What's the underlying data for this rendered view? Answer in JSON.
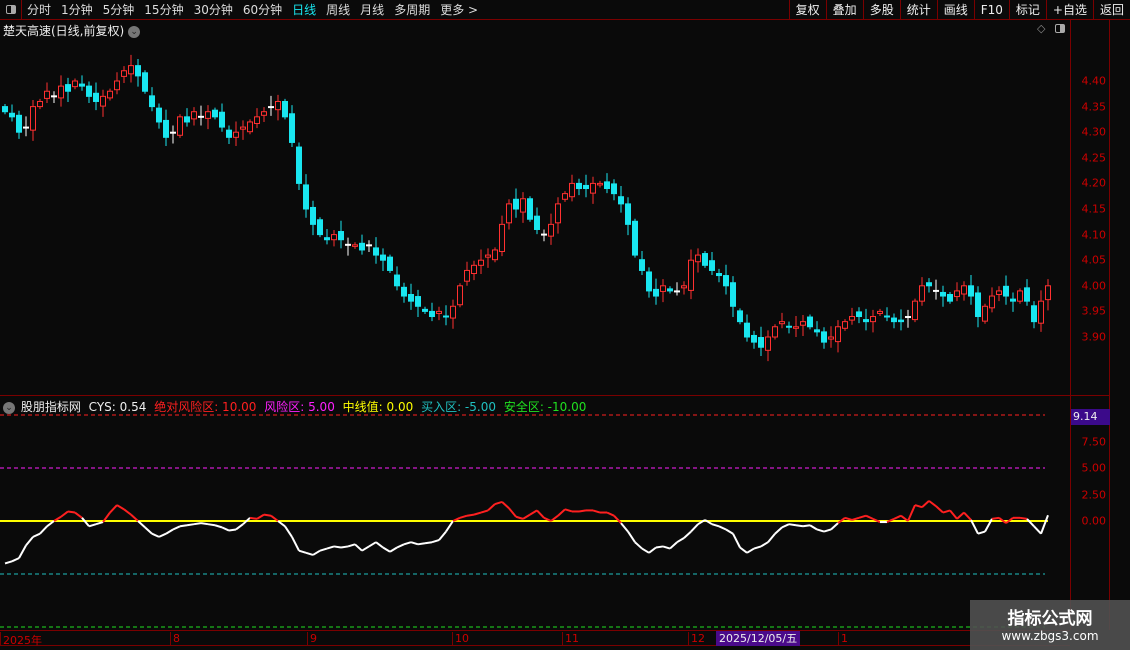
{
  "toolbar": {
    "tabs": [
      "分时",
      "1分钟",
      "5分钟",
      "15分钟",
      "30分钟",
      "60分钟",
      "日线",
      "周线",
      "月线",
      "多周期",
      "更多 >"
    ],
    "active": "日线",
    "right_buttons": [
      "复权",
      "叠加",
      "多股",
      "统计",
      "画线",
      "F10",
      "标记",
      "+自选",
      "返回"
    ]
  },
  "chart": {
    "title": "楚天高速(日线,前复权)",
    "price_ticks": [
      "4.40",
      "4.35",
      "4.30",
      "4.25",
      "4.20",
      "4.15",
      "4.10",
      "4.05",
      "4.00",
      "3.95",
      "3.90"
    ],
    "up_color": "#ff3030",
    "down_color": "#19e6f0",
    "closes": [
      4.34,
      4.33,
      4.3,
      4.31,
      4.35,
      4.36,
      4.38,
      4.37,
      4.39,
      4.38,
      4.4,
      4.39,
      4.37,
      4.36,
      4.37,
      4.38,
      4.4,
      4.42,
      4.43,
      4.41,
      4.38,
      4.35,
      4.32,
      4.29,
      4.3,
      4.33,
      4.32,
      4.34,
      4.33,
      4.34,
      4.33,
      4.31,
      4.29,
      4.3,
      4.31,
      4.32,
      4.33,
      4.34,
      4.35,
      4.36,
      4.33,
      4.28,
      4.2,
      4.15,
      4.12,
      4.1,
      4.09,
      4.1,
      4.09,
      4.08,
      4.08,
      4.07,
      4.08,
      4.06,
      4.05,
      4.03,
      4.0,
      3.98,
      3.97,
      3.96,
      3.95,
      3.94,
      3.95,
      3.94,
      3.96,
      4.0,
      4.03,
      4.04,
      4.05,
      4.06,
      4.07,
      4.12,
      4.16,
      4.15,
      4.17,
      4.13,
      4.11,
      4.1,
      4.12,
      4.16,
      4.18,
      4.2,
      4.19,
      4.19,
      4.2,
      4.2,
      4.19,
      4.18,
      4.16,
      4.12,
      4.06,
      4.03,
      3.99,
      3.98,
      4.0,
      3.99,
      3.99,
      4.0,
      4.05,
      4.06,
      4.04,
      4.03,
      4.02,
      4.0,
      3.96,
      3.93,
      3.9,
      3.89,
      3.88,
      3.9,
      3.92,
      3.93,
      3.92,
      3.92,
      3.93,
      3.92,
      3.91,
      3.89,
      3.9,
      3.92,
      3.93,
      3.94,
      3.94,
      3.93,
      3.94,
      3.95,
      3.94,
      3.93,
      3.93,
      3.94,
      3.97,
      4.0,
      4.0,
      3.99,
      3.98,
      3.97,
      3.99,
      4.0,
      3.98,
      3.94,
      3.96,
      3.98,
      3.99,
      3.98,
      3.97,
      3.99,
      3.97,
      3.93,
      3.97,
      4.0
    ]
  },
  "indicator": {
    "name": "股朋指标网",
    "cys_label": "CYS: 0.54",
    "abs_risk": "绝对风险区: 10.00",
    "risk": "风险区: 5.00",
    "mid": "中线值: 0.00",
    "buy": "买入区: -5.00",
    "safe": "安全区: -10.00",
    "colors": {
      "abs_risk": "#ff2020",
      "risk": "#ff20ff",
      "mid": "#ffff00",
      "buy": "#20c0c0",
      "safe": "#20e020"
    },
    "current_value": "9.14",
    "ticks": [
      "7.50",
      "5.00",
      "2.50",
      "0.00"
    ],
    "cys": [
      -4,
      -3.8,
      -3.5,
      -2.3,
      -1.5,
      -1.2,
      -0.5,
      0,
      0.4,
      0.9,
      0.8,
      0.3,
      -0.5,
      -0.3,
      -0.1,
      0.8,
      1.5,
      1.1,
      0.6,
      0,
      -0.6,
      -1.2,
      -1.5,
      -1.2,
      -0.8,
      -0.5,
      -0.4,
      -0.3,
      -0.2,
      -0.3,
      -0.4,
      -0.6,
      -0.9,
      -0.8,
      -0.3,
      0.3,
      0.2,
      0.6,
      0.5,
      0,
      -0.5,
      -1.5,
      -2.8,
      -3.0,
      -3.2,
      -2.8,
      -2.6,
      -2.4,
      -2.5,
      -2.4,
      -2.2,
      -2.8,
      -2.4,
      -2.0,
      -2.5,
      -2.9,
      -2.5,
      -2.2,
      -2.0,
      -2.2,
      -2.1,
      -2.0,
      -1.8,
      -1.0,
      0,
      0.3,
      0.5,
      0.6,
      0.8,
      1.0,
      1.6,
      1.8,
      1.2,
      0.4,
      0.2,
      0.6,
      1.0,
      0.3,
      0,
      0.5,
      1.1,
      0.9,
      0.9,
      1.0,
      1.0,
      0.8,
      0.8,
      0.5,
      -0.2,
      -1.0,
      -2.0,
      -2.6,
      -3.0,
      -2.5,
      -2.4,
      -2.6,
      -2.0,
      -1.6,
      -1.0,
      -0.3,
      0.1,
      -0.3,
      -0.5,
      -0.8,
      -1.2,
      -2.5,
      -3.0,
      -2.6,
      -2.4,
      -2.0,
      -1.2,
      -0.6,
      -0.3,
      -0.4,
      -0.5,
      -0.4,
      -0.8,
      -1.0,
      -0.8,
      -0.2,
      0.3,
      0.1,
      0.3,
      0.5,
      0.2,
      -0.1,
      -0.1,
      0.2,
      0.5,
      0,
      1.5,
      1.3,
      1.9,
      1.4,
      0.8,
      1.0,
      0.2,
      0.8,
      0.1,
      -1.2,
      -1.0,
      0.2,
      0.3,
      -0.2,
      0.3,
      0.3,
      0.2,
      -0.5,
      -1.2,
      0.54
    ]
  },
  "date_axis": {
    "labels": [
      "2025年",
      "8",
      "9",
      "10",
      "11",
      "12",
      "1"
    ],
    "selected": "2025/12/05/五"
  },
  "watermark": {
    "line1": "指标公式网",
    "line2": "www.zbgs3.com"
  }
}
